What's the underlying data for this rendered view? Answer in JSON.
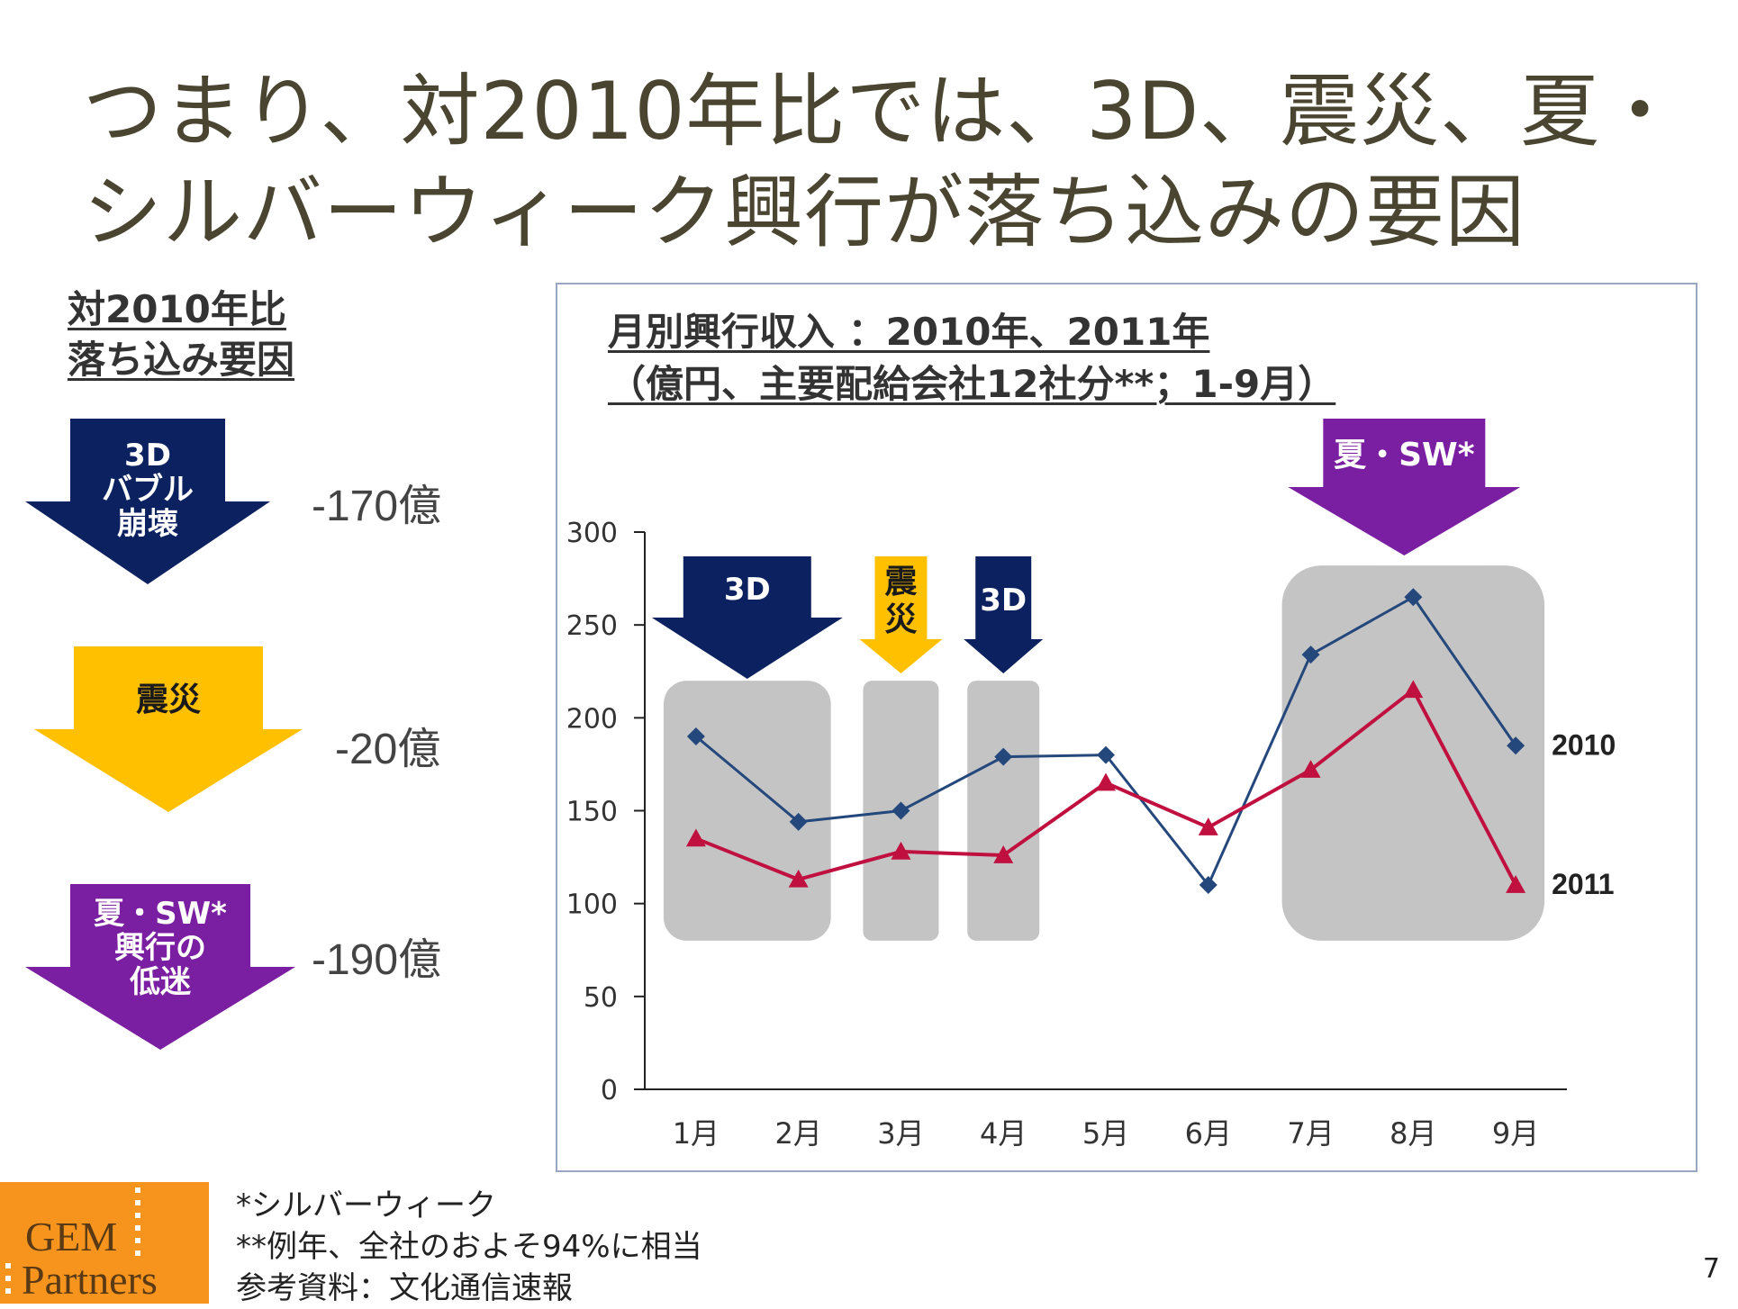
{
  "slide": {
    "title_lines": [
      "つまり、対2010年比では、3D、震災、夏・",
      "シルバーウィーク興行が落ち込みの要因"
    ],
    "page_number": "7"
  },
  "factors": {
    "heading_lines": [
      "対2010年比",
      "落ち込み要因"
    ],
    "items": [
      {
        "label_lines": [
          "3D",
          "バブル",
          "崩壊"
        ],
        "amount": "-170億",
        "color": "#0c2160",
        "text_color": "#ffffff"
      },
      {
        "label_lines": [
          "震災"
        ],
        "amount": "-20億",
        "color": "#ffc000",
        "text_color": "#1a1a1a"
      },
      {
        "label_lines": [
          "夏・SW*",
          "興行の",
          "低迷"
        ],
        "amount": "-190億",
        "color": "#7b1fa2",
        "text_color": "#ffffff"
      }
    ]
  },
  "chart_data": {
    "type": "line",
    "title_lines": [
      "月別興行収入 ：2010年、2011年",
      "（億円、主要配給会社12社分**；1-9月）"
    ],
    "categories": [
      "1月",
      "2月",
      "3月",
      "4月",
      "5月",
      "6月",
      "7月",
      "8月",
      "9月"
    ],
    "series": [
      {
        "name": "2010",
        "values": [
          190,
          144,
          150,
          179,
          180,
          110,
          234,
          265,
          185
        ],
        "color": "#24477c",
        "marker": "diamond"
      },
      {
        "name": "2011",
        "values": [
          135,
          113,
          128,
          126,
          165,
          141,
          172,
          215,
          110
        ],
        "color": "#c0103f",
        "marker": "triangle"
      }
    ],
    "ylim": [
      0,
      300
    ],
    "yticks": [
      0,
      50,
      100,
      150,
      200,
      250,
      300
    ],
    "highlights": [
      {
        "from": "1月",
        "to": "2月",
        "label": "3D",
        "label_vertical": false,
        "arrow_color": "#0c2160",
        "text_color": "#ffffff"
      },
      {
        "from": "3月",
        "to": "3月",
        "label": "震災",
        "label_vertical": true,
        "arrow_color": "#ffc000",
        "text_color": "#1a1a1a"
      },
      {
        "from": "4月",
        "to": "4月",
        "label": "3D",
        "label_vertical": false,
        "arrow_color": "#0c2160",
        "text_color": "#ffffff"
      },
      {
        "from": "7月",
        "to": "9月",
        "label": "夏・SW*",
        "label_vertical": false,
        "arrow_color": "#7b1fa2",
        "text_color": "#ffffff"
      }
    ],
    "box_color": "#c4c4c4"
  },
  "footer": {
    "logo_lines": [
      "GEM",
      "Partners"
    ],
    "notes": [
      "*シルバーウィーク",
      "**例年、全社のおよそ94%に相当",
      "参考資料：文化通信速報"
    ]
  }
}
